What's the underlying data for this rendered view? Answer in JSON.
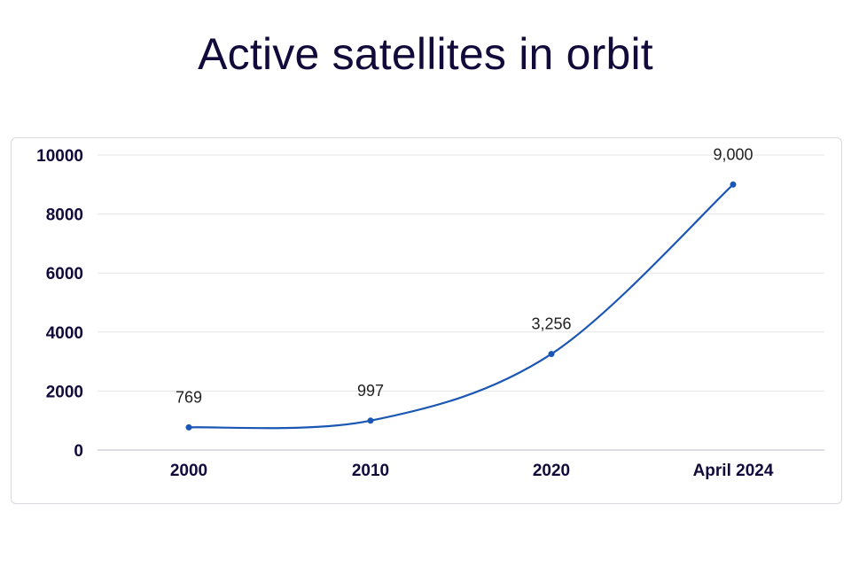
{
  "chart_data": {
    "type": "line",
    "title": "Active satellites in orbit",
    "categories": [
      "2000",
      "2010",
      "2020",
      "April 2024"
    ],
    "series": [
      {
        "name": "Active satellites",
        "values": [
          769,
          997,
          3256,
          9000
        ],
        "labels": [
          "769",
          "997",
          "3,256",
          "9,000"
        ]
      }
    ],
    "ylim": [
      0,
      10000
    ],
    "yticks": [
      0,
      2000,
      4000,
      6000,
      8000,
      10000
    ],
    "xlabel": "",
    "ylabel": "",
    "grid": true,
    "line_color": "#1a56b4"
  }
}
